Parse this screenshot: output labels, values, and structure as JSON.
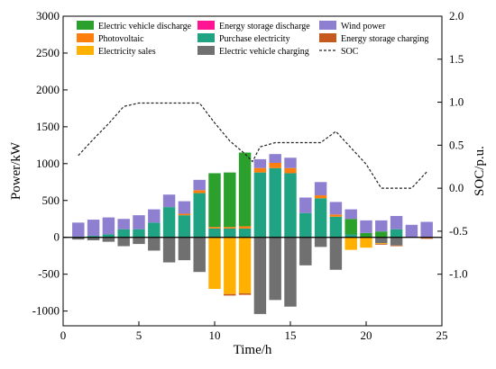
{
  "chart_data": {
    "type": "bar",
    "stacked": true,
    "x": [
      1,
      2,
      3,
      4,
      5,
      6,
      7,
      8,
      9,
      10,
      11,
      12,
      13,
      14,
      15,
      16,
      17,
      18,
      19,
      20,
      21,
      22,
      23,
      24
    ],
    "xlabel": "Time/h",
    "ylabel": "Power/kW",
    "y2label": "SOC/p.u.",
    "xlim": [
      0,
      25
    ],
    "ylim": [
      -1200,
      3000
    ],
    "y2lim": [
      -1.6,
      2.0
    ],
    "xticks": [
      "0",
      "5",
      "10",
      "15",
      "20",
      "25"
    ],
    "yticks": [
      "3000",
      "2500",
      "2000",
      "1500",
      "1000",
      "500",
      "0",
      "-500",
      "-1000"
    ],
    "y2ticks": [
      "2.0",
      "1.5",
      "1.0",
      "0.5",
      "0.0",
      "-0.5",
      "-1.0"
    ],
    "legend_position": "top",
    "positive_series": [
      {
        "name": "Purchase electricity",
        "color": "#1fa383",
        "values": [
          10,
          20,
          40,
          110,
          110,
          200,
          410,
          300,
          600,
          120,
          120,
          120,
          880,
          940,
          870,
          330,
          530,
          280,
          40,
          0,
          0,
          110,
          0,
          0
        ]
      },
      {
        "name": "Photovoltaic",
        "color": "#ff7f0e",
        "values": [
          0,
          0,
          0,
          0,
          0,
          0,
          0,
          20,
          40,
          20,
          20,
          30,
          60,
          70,
          70,
          0,
          40,
          30,
          0,
          0,
          0,
          0,
          0,
          0
        ]
      },
      {
        "name": "Electric vehicle discharge",
        "color": "#2ca02c",
        "values": [
          0,
          0,
          0,
          0,
          0,
          0,
          0,
          0,
          0,
          730,
          740,
          1000,
          0,
          0,
          0,
          0,
          0,
          0,
          210,
          60,
          80,
          0,
          0,
          0
        ]
      },
      {
        "name": "Energy storage discharge",
        "color": "#ff1493",
        "values": [
          0,
          0,
          0,
          0,
          0,
          0,
          0,
          0,
          0,
          0,
          0,
          0,
          0,
          0,
          0,
          0,
          0,
          0,
          0,
          0,
          0,
          0,
          0,
          0
        ]
      },
      {
        "name": "Wind power",
        "color": "#8f7fd0",
        "values": [
          190,
          220,
          230,
          140,
          190,
          180,
          170,
          170,
          140,
          0,
          0,
          0,
          120,
          120,
          140,
          210,
          180,
          170,
          130,
          170,
          150,
          180,
          170,
          210
        ]
      }
    ],
    "negative_series": [
      {
        "name": "Electric vehicle charging",
        "color": "#707070",
        "values": [
          -30,
          -40,
          -60,
          -120,
          -90,
          -180,
          -340,
          -310,
          -470,
          0,
          0,
          0,
          -1040,
          -850,
          -940,
          -380,
          -130,
          -440,
          0,
          0,
          -80,
          -110,
          0,
          0
        ]
      },
      {
        "name": "Electricity sales",
        "color": "#ffb000",
        "values": [
          0,
          0,
          0,
          0,
          0,
          0,
          0,
          0,
          0,
          -700,
          -770,
          -760,
          0,
          0,
          0,
          0,
          0,
          0,
          -170,
          -140,
          -10,
          0,
          0,
          -10
        ]
      },
      {
        "name": "Energy storage charging",
        "color": "#c65a1e",
        "values": [
          0,
          0,
          0,
          0,
          0,
          0,
          0,
          0,
          0,
          0,
          -20,
          -20,
          0,
          0,
          0,
          0,
          0,
          0,
          0,
          0,
          -10,
          -10,
          0,
          -10
        ]
      }
    ],
    "soc_series": {
      "name": "SOC",
      "color": "#222222",
      "style": "dashed",
      "x": [
        1,
        2,
        3,
        4,
        5,
        6,
        7,
        8,
        9,
        10,
        11,
        12,
        12.5,
        13,
        14,
        15,
        16,
        17,
        18,
        19,
        20,
        21,
        22,
        23,
        24
      ],
      "values": [
        0.38,
        0.57,
        0.75,
        0.95,
        0.99,
        0.99,
        0.99,
        0.99,
        0.99,
        0.76,
        0.55,
        0.4,
        0.31,
        0.48,
        0.53,
        0.53,
        0.53,
        0.53,
        0.66,
        0.47,
        0.28,
        0.0,
        0.0,
        0.0,
        0.19
      ]
    },
    "legend": [
      {
        "name": "Electric vehicle discharge",
        "color": "#2ca02c",
        "kind": "box"
      },
      {
        "name": "Energy storage discharge",
        "color": "#ff1493",
        "kind": "box"
      },
      {
        "name": "Wind power",
        "color": "#8f7fd0",
        "kind": "box"
      },
      {
        "name": "Photovoltaic",
        "color": "#ff7f0e",
        "kind": "box"
      },
      {
        "name": "Purchase electricity",
        "color": "#1fa383",
        "kind": "box"
      },
      {
        "name": "Energy storage charging",
        "color": "#c65a1e",
        "kind": "box"
      },
      {
        "name": "Electricity sales",
        "color": "#ffb000",
        "kind": "box"
      },
      {
        "name": "Electric vehicle charging",
        "color": "#707070",
        "kind": "box"
      },
      {
        "name": "SOC",
        "color": "#222222",
        "kind": "dash"
      }
    ]
  }
}
